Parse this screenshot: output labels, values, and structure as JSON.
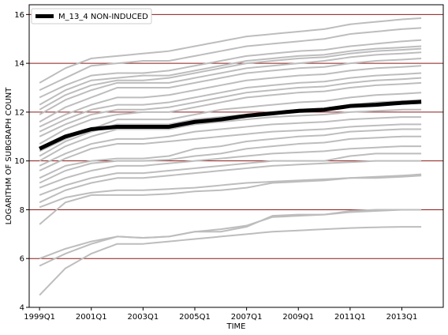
{
  "chart_data": {
    "type": "line",
    "xlabel": "TIME",
    "ylabel": "LOGARITHM OF SUBGRAPH COUNT",
    "xlim": [
      1998.6,
      2014.6
    ],
    "ylim": [
      4,
      16.4
    ],
    "x_ticks": [
      {
        "value": 1999.0,
        "label": "1999Q1"
      },
      {
        "value": 2001.0,
        "label": "2001Q1"
      },
      {
        "value": 2003.0,
        "label": "2003Q1"
      },
      {
        "value": 2005.0,
        "label": "2005Q1"
      },
      {
        "value": 2007.0,
        "label": "2007Q1"
      },
      {
        "value": 2009.0,
        "label": "2009Q1"
      },
      {
        "value": 2011.0,
        "label": "2011Q1"
      },
      {
        "value": 2013.0,
        "label": "2013Q1"
      }
    ],
    "y_ticks": [
      4,
      6,
      8,
      10,
      12,
      14,
      16
    ],
    "grid": "horizontal",
    "grid_color": "#8b1a1a",
    "background_series_color": "#bdbdbd",
    "highlight_color": "#000000",
    "legend": {
      "position": "top-left",
      "entries": [
        "M_13_4 NON-INDUCED"
      ]
    },
    "x": [
      1999.0,
      2000.0,
      2001.0,
      2002.0,
      2003.0,
      2004.0,
      2005.0,
      2006.0,
      2007.0,
      2008.0,
      2009.0,
      2010.0,
      2011.0,
      2012.0,
      2013.0,
      2013.75
    ],
    "highlight_series": {
      "name": "M_13_4 NON-INDUCED",
      "values": [
        10.5,
        11.0,
        11.3,
        11.4,
        11.4,
        11.4,
        11.6,
        11.7,
        11.85,
        11.95,
        12.05,
        12.1,
        12.25,
        12.3,
        12.38,
        12.42
      ]
    },
    "series": [
      {
        "values": [
          13.2,
          13.8,
          14.2,
          14.3,
          14.4,
          14.5,
          14.7,
          14.9,
          15.1,
          15.2,
          15.3,
          15.4,
          15.6,
          15.7,
          15.8,
          15.85
        ]
      },
      {
        "values": [
          12.9,
          13.4,
          13.9,
          14.0,
          14.1,
          14.1,
          14.3,
          14.5,
          14.7,
          14.8,
          14.9,
          15.0,
          15.2,
          15.3,
          15.4,
          15.45
        ]
      },
      {
        "values": [
          12.6,
          13.1,
          13.5,
          13.6,
          13.6,
          13.7,
          13.9,
          14.1,
          14.3,
          14.4,
          14.5,
          14.55,
          14.7,
          14.8,
          14.9,
          14.95
        ]
      },
      {
        "values": [
          12.3,
          12.9,
          13.3,
          13.4,
          13.5,
          13.5,
          13.7,
          13.9,
          14.1,
          14.2,
          14.3,
          14.35,
          14.5,
          14.6,
          14.65,
          14.7
        ]
      },
      {
        "values": [
          12.1,
          12.7,
          13.1,
          13.3,
          13.3,
          13.4,
          13.6,
          13.8,
          14.0,
          14.1,
          14.2,
          14.25,
          14.4,
          14.5,
          14.55,
          14.6
        ]
      },
      {
        "values": [
          11.9,
          12.5,
          12.9,
          13.2,
          13.2,
          13.2,
          13.4,
          13.6,
          13.8,
          13.9,
          14.0,
          14.1,
          14.25,
          14.35,
          14.4,
          14.45
        ]
      },
      {
        "values": [
          11.6,
          12.2,
          12.6,
          13.0,
          13.0,
          13.0,
          13.2,
          13.4,
          13.6,
          13.7,
          13.8,
          13.85,
          14.0,
          14.1,
          14.15,
          14.2
        ]
      },
      {
        "values": [
          11.4,
          11.9,
          12.3,
          12.6,
          12.6,
          12.7,
          12.9,
          13.1,
          13.3,
          13.4,
          13.5,
          13.55,
          13.7,
          13.8,
          13.85,
          13.9
        ]
      },
      {
        "values": [
          11.2,
          11.7,
          12.1,
          12.3,
          12.3,
          12.4,
          12.6,
          12.8,
          13.0,
          13.1,
          13.2,
          13.25,
          13.4,
          13.5,
          13.55,
          13.6
        ]
      },
      {
        "values": [
          11.0,
          11.5,
          11.9,
          12.1,
          12.1,
          12.2,
          12.4,
          12.6,
          12.8,
          12.9,
          13.0,
          13.05,
          13.2,
          13.3,
          13.35,
          13.4
        ]
      },
      {
        "values": [
          10.7,
          11.3,
          11.7,
          11.9,
          12.0,
          12.0,
          12.2,
          12.4,
          12.6,
          12.7,
          12.8,
          12.85,
          13.0,
          13.1,
          13.15,
          13.2
        ]
      },
      {
        "values": [
          10.4,
          10.9,
          11.3,
          11.7,
          11.7,
          11.7,
          11.9,
          12.1,
          12.2,
          12.3,
          12.4,
          12.45,
          12.6,
          12.7,
          12.75,
          12.8
        ]
      },
      {
        "values": [
          10.2,
          10.8,
          11.2,
          11.5,
          11.5,
          11.5,
          11.7,
          11.8,
          11.9,
          12.0,
          12.1,
          12.15,
          12.3,
          12.4,
          12.45,
          12.5
        ]
      },
      {
        "values": [
          10.0,
          10.6,
          11.0,
          11.3,
          11.3,
          11.3,
          11.5,
          11.6,
          11.7,
          11.8,
          11.85,
          11.9,
          12.0,
          12.05,
          12.1,
          12.1
        ]
      },
      {
        "values": [
          9.8,
          10.3,
          10.7,
          10.9,
          10.9,
          11.0,
          11.2,
          11.3,
          11.4,
          11.5,
          11.55,
          11.6,
          11.7,
          11.75,
          11.8,
          11.8
        ]
      },
      {
        "values": [
          9.6,
          10.1,
          10.5,
          10.7,
          10.7,
          10.8,
          10.9,
          11.0,
          11.1,
          11.2,
          11.25,
          11.3,
          11.4,
          11.45,
          11.5,
          11.5
        ]
      },
      {
        "values": [
          9.3,
          9.8,
          10.0,
          10.1,
          10.1,
          10.2,
          10.5,
          10.6,
          10.8,
          10.9,
          11.0,
          11.05,
          11.2,
          11.25,
          11.3,
          11.3
        ]
      },
      {
        "values": [
          9.1,
          9.6,
          9.9,
          10.0,
          10.0,
          10.05,
          10.2,
          10.3,
          10.5,
          10.6,
          10.7,
          10.75,
          10.9,
          10.95,
          11.0,
          11.0
        ]
      },
      {
        "values": [
          8.9,
          9.3,
          9.6,
          9.8,
          9.8,
          9.9,
          10.0,
          10.1,
          10.2,
          10.3,
          10.35,
          10.4,
          10.5,
          10.55,
          10.6,
          10.6
        ]
      },
      {
        "values": [
          8.6,
          9.0,
          9.3,
          9.5,
          9.5,
          9.6,
          9.7,
          9.8,
          9.9,
          10.0,
          10.0,
          10.0,
          10.2,
          10.3,
          10.3,
          10.3
        ]
      },
      {
        "values": [
          8.3,
          8.8,
          9.1,
          9.3,
          9.3,
          9.4,
          9.5,
          9.6,
          9.7,
          9.8,
          9.85,
          9.9,
          9.95,
          10.0,
          10.0,
          10.0
        ]
      },
      {
        "values": [
          8.1,
          8.5,
          8.7,
          8.8,
          8.8,
          8.85,
          8.9,
          9.0,
          9.1,
          9.15,
          9.2,
          9.25,
          9.3,
          9.35,
          9.4,
          9.45
        ]
      },
      {
        "values": [
          7.4,
          8.3,
          8.6,
          8.6,
          8.6,
          8.65,
          8.75,
          8.8,
          8.9,
          9.1,
          9.15,
          9.2,
          9.3,
          9.3,
          9.35,
          9.4
        ]
      },
      {
        "values": [
          6.0,
          6.4,
          6.7,
          6.9,
          6.85,
          6.9,
          7.1,
          7.2,
          7.35,
          7.7,
          7.75,
          7.8,
          7.95,
          8.0,
          8.0,
          8.0
        ]
      },
      {
        "values": [
          5.7,
          6.2,
          6.6,
          6.9,
          6.85,
          6.9,
          7.1,
          7.1,
          7.3,
          7.75,
          7.8,
          7.8,
          7.9,
          7.95,
          8.0,
          8.0
        ]
      },
      {
        "values": [
          4.5,
          5.6,
          6.2,
          6.6,
          6.6,
          6.7,
          6.8,
          6.9,
          7.0,
          7.1,
          7.15,
          7.2,
          7.25,
          7.28,
          7.3,
          7.3
        ]
      }
    ]
  }
}
